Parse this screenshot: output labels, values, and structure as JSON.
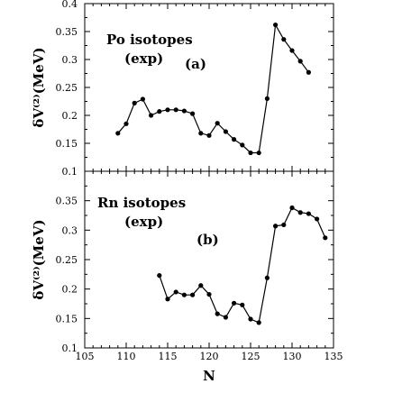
{
  "chart_data": [
    {
      "type": "line",
      "panel": "(a)",
      "annotation_lines": [
        "Po isotopes",
        "(exp)"
      ],
      "panel_label": "(a)",
      "ylabel": "δV⁽²⁾(MeV)",
      "xlim": [
        105,
        135
      ],
      "ylim": [
        0.1,
        0.4
      ],
      "y_ticks": [
        "0.1",
        "0.15",
        "0.2",
        "0.25",
        "0.3",
        "0.35",
        "0.4"
      ],
      "y_tick_values": [
        0.1,
        0.15,
        0.2,
        0.25,
        0.3,
        0.35,
        0.4
      ],
      "series": [
        {
          "x": [
            109,
            110,
            111,
            112,
            113,
            114,
            115,
            116,
            117,
            118,
            119,
            120,
            121,
            122,
            123,
            124,
            125,
            126,
            127,
            128,
            129,
            130,
            131,
            132
          ],
          "y": [
            0.168,
            0.185,
            0.222,
            0.229,
            0.2,
            0.207,
            0.21,
            0.21,
            0.208,
            0.203,
            0.168,
            0.164,
            0.186,
            0.171,
            0.157,
            0.147,
            0.133,
            0.133,
            0.23,
            0.362,
            0.336,
            0.316,
            0.297,
            0.277
          ]
        }
      ]
    },
    {
      "type": "line",
      "panel": "(b)",
      "annotation_lines": [
        "Rn isotopes",
        "(exp)"
      ],
      "panel_label": "(b)",
      "ylabel": "δV⁽²⁾(MeV)",
      "xlabel": "N",
      "xlim": [
        105,
        135
      ],
      "ylim": [
        0.1,
        0.4
      ],
      "x_ticks": [
        "105",
        "110",
        "115",
        "120",
        "125",
        "130",
        "135"
      ],
      "x_tick_values": [
        105,
        110,
        115,
        120,
        125,
        130,
        135
      ],
      "y_ticks": [
        "0.1",
        "0.15",
        "0.2",
        "0.25",
        "0.3",
        "0.35"
      ],
      "y_tick_values": [
        0.1,
        0.15,
        0.2,
        0.25,
        0.3,
        0.35
      ],
      "series": [
        {
          "x": [
            114,
            115,
            116,
            117,
            118,
            119,
            120,
            121,
            122,
            123,
            124,
            125,
            126,
            127,
            128,
            129,
            130,
            131,
            132,
            133,
            134
          ],
          "y": [
            0.223,
            0.183,
            0.195,
            0.19,
            0.19,
            0.206,
            0.191,
            0.158,
            0.152,
            0.176,
            0.173,
            0.149,
            0.143,
            0.219,
            0.307,
            0.309,
            0.338,
            0.33,
            0.328,
            0.319,
            0.287
          ]
        }
      ]
    }
  ]
}
